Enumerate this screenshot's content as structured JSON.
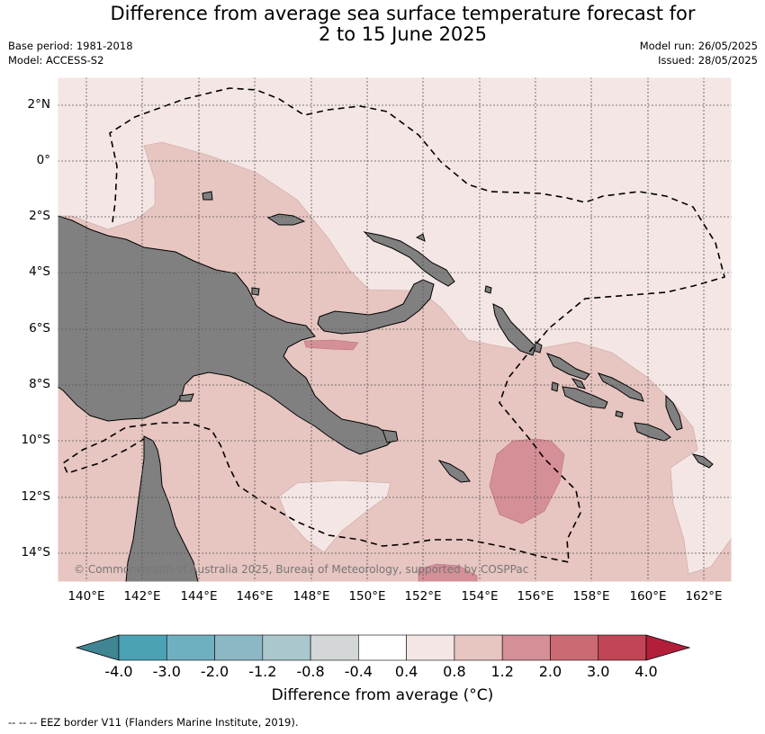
{
  "title_line1": "Difference from average sea surface temperature forecast for",
  "title_line2": "2 to 15 June 2025",
  "base_period": "Base period: 1981-2018",
  "model": "Model: ACCESS-S2",
  "model_run": "Model run: 26/05/2025",
  "issued": "Issued: 28/05/2025",
  "lat_ticks": [
    "2°N",
    "0°",
    "2°S",
    "4°S",
    "6°S",
    "8°S",
    "10°S",
    "12°S",
    "14°S"
  ],
  "lon_ticks": [
    "140°E",
    "142°E",
    "144°E",
    "146°E",
    "148°E",
    "150°E",
    "152°E",
    "154°E",
    "156°E",
    "158°E",
    "160°E",
    "162°E"
  ],
  "copyright": "© Commonwealth of Australia 2025, Bureau of Meteorology, supported by COSPPac",
  "colorbar": {
    "ticks": [
      "-4.0",
      "-3.0",
      "-2.0",
      "-1.2",
      "-0.8",
      "-0.4",
      "0.4",
      "0.8",
      "1.2",
      "2.0",
      "3.0",
      "4.0"
    ],
    "colors": [
      "#3f8593",
      "#4aa2b4",
      "#6fb0c0",
      "#8cb7c4",
      "#a9c7cc",
      "#d4d7d8",
      "#ffffff",
      "#f4e6e4",
      "#e7c5c0",
      "#d58f97",
      "#cc6a73",
      "#c04555",
      "#b31f3a"
    ],
    "label": "Difference from average (°C)"
  },
  "legend_note": "--  --  -- EEZ border V11 (Flanders Marine Institute, 2019).",
  "colors": {
    "land": "#808080",
    "background_anomaly": "#f4e6e4",
    "warm_0_8": "#e7c5c0",
    "warm_1_2": "#d58f97"
  }
}
